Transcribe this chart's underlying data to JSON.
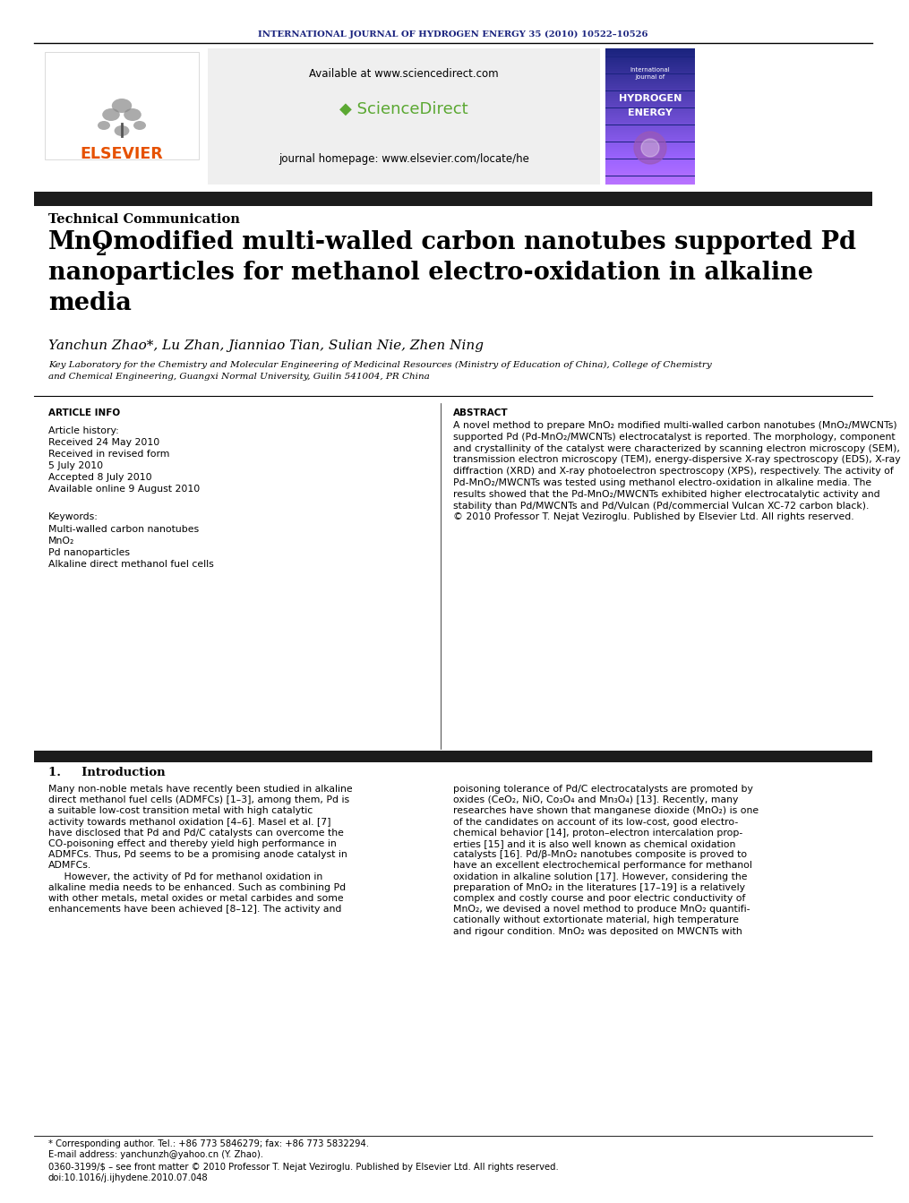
{
  "journal_header": "INTERNATIONAL JOURNAL OF HYDROGEN ENERGY 35 (2010) 10522–10526",
  "journal_header_color": "#1a237e",
  "elsevier_color": "#e65100",
  "sciencedirect_url": "Available at www.sciencedirect.com",
  "journal_homepage": "journal homepage: www.elsevier.com/locate/he",
  "section_label": "Technical Communication",
  "title_mno": "MnO",
  "title_sub": "2",
  "title_line1_rest": " modified multi-walled carbon nanotubes supported Pd",
  "title_line2": "nanoparticles for methanol electro-oxidation in alkaline",
  "title_line3": "media",
  "authors": "Yanchun Zhao*, Lu Zhan, Jianniao Tian, Sulian Nie, Zhen Ning",
  "affiliation_line1": "Key Laboratory for the Chemistry and Molecular Engineering of Medicinal Resources (Ministry of Education of China), College of Chemistry",
  "affiliation_line2": "and Chemical Engineering, Guangxi Normal University, Guilin 541004, PR China",
  "article_info_header": "ARTICLE INFO",
  "abstract_header": "ABSTRACT",
  "article_history_label": "Article history:",
  "received_label": "Received 24 May 2010",
  "revised_label": "Received in revised form",
  "revised_date": "5 July 2010",
  "accepted_label": "Accepted 8 July 2010",
  "online_label": "Available online 9 August 2010",
  "keywords_label": "Keywords:",
  "kw1": "Multi-walled carbon nanotubes",
  "kw2": "MnO₂",
  "kw3": "Pd nanoparticles",
  "kw4": "Alkaline direct methanol fuel cells",
  "abstract_lines": [
    "A novel method to prepare MnO₂ modified multi-walled carbon nanotubes (MnO₂/MWCNTs)",
    "supported Pd (Pd-MnO₂/MWCNTs) electrocatalyst is reported. The morphology, component",
    "and crystallinity of the catalyst were characterized by scanning electron microscopy (SEM),",
    "transmission electron microscopy (TEM), energy-dispersive X-ray spectroscopy (EDS), X-ray",
    "diffraction (XRD) and X-ray photoelectron spectroscopy (XPS), respectively. The activity of",
    "Pd-MnO₂/MWCNTs was tested using methanol electro-oxidation in alkaline media. The",
    "results showed that the Pd-MnO₂/MWCNTs exhibited higher electrocatalytic activity and",
    "stability than Pd/MWCNTs and Pd/Vulcan (Pd/commercial Vulcan XC-72 carbon black).",
    "© 2010 Professor T. Nejat Veziroglu. Published by Elsevier Ltd. All rights reserved."
  ],
  "intro_header": "1.     Introduction",
  "intro_col1_lines": [
    "Many non-noble metals have recently been studied in alkaline",
    "direct methanol fuel cells (ADMFCs) [1–3], among them, Pd is",
    "a suitable low-cost transition metal with high catalytic",
    "activity towards methanol oxidation [4–6]. Masel et al. [7]",
    "have disclosed that Pd and Pd/C catalysts can overcome the",
    "CO-poisoning effect and thereby yield high performance in",
    "ADMFCs. Thus, Pd seems to be a promising anode catalyst in",
    "ADMFCs.",
    "     However, the activity of Pd for methanol oxidation in",
    "alkaline media needs to be enhanced. Such as combining Pd",
    "with other metals, metal oxides or metal carbides and some",
    "enhancements have been achieved [8–12]. The activity and"
  ],
  "intro_col2_lines": [
    "poisoning tolerance of Pd/C electrocatalysts are promoted by",
    "oxides (CeO₂, NiO, Co₃O₄ and Mn₃O₄) [13]. Recently, many",
    "researches have shown that manganese dioxide (MnO₂) is one",
    "of the candidates on account of its low-cost, good electro-",
    "chemical behavior [14], proton–electron intercalation prop-",
    "erties [15] and it is also well known as chemical oxidation",
    "catalysts [16]. Pd/β-MnO₂ nanotubes composite is proved to",
    "have an excellent electrochemical performance for methanol",
    "oxidation in alkaline solution [17]. However, considering the",
    "preparation of MnO₂ in the literatures [17–19] is a relatively",
    "complex and costly course and poor electric conductivity of",
    "MnO₂, we devised a novel method to produce MnO₂ quantifi-",
    "cationally without extortionate material, high temperature",
    "and rigour condition. MnO₂ was deposited on MWCNTs with"
  ],
  "footnote_star": "* Corresponding author. Tel.: +86 773 5846279; fax: +86 773 5832294.",
  "footnote_email": "E-mail address: yanchunzh@yahoo.cn (Y. Zhao).",
  "footnote_issn": "0360-3199/$ – see front matter © 2010 Professor T. Nejat Veziroglu. Published by Elsevier Ltd. All rights reserved.",
  "footnote_doi": "doi:10.1016/j.ijhydene.2010.07.048",
  "bg_color": "#ffffff",
  "dark_bar_color": "#1c1c1c",
  "sd_box_color": "#efefef",
  "he_cover_color": "#1a237e"
}
